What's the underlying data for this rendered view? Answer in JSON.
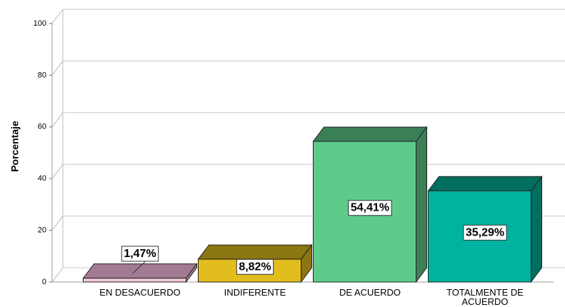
{
  "chart_data": {
    "type": "bar3d",
    "y_label": "Porcentaje",
    "categories": [
      "EN DESACUERDO",
      "INDIFERENTE",
      "DE ACUERDO",
      "TOTALMENTE DE ACUERDO"
    ],
    "values": [
      1.47,
      8.82,
      54.41,
      35.29
    ],
    "value_labels": [
      "1,47%",
      "8,82%",
      "54,41%",
      "35,29%"
    ],
    "colors": [
      "#f6c8da",
      "#e2bd1e",
      "#5fcb8a",
      "#00b2a0"
    ],
    "top_colors": [
      "#a27b92",
      "#8b7611",
      "#3b7f56",
      "#006f5f"
    ],
    "ylim": [
      0,
      100
    ],
    "yticks": [
      0,
      20,
      40,
      60,
      80,
      100
    ],
    "grid": true
  }
}
